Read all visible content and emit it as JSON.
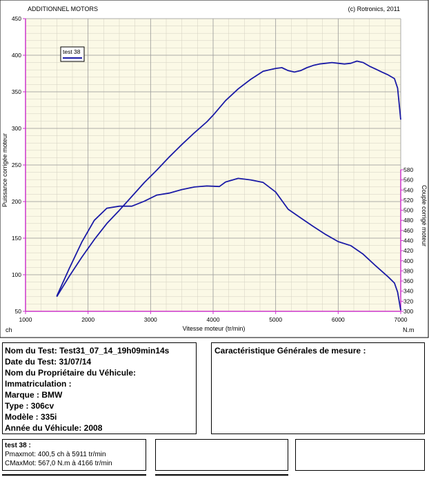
{
  "header": {
    "left_title": "ADDITIONNEL MOTORS",
    "right_title": "(c) Rotronics, 2011"
  },
  "chart_data": {
    "type": "line",
    "xlabel": "Vitesse moteur (tr/min)",
    "ylabel_left": "Puissance corrigée moteur",
    "ylabel_right": "Couple corrigé moteur",
    "unit_left": "ch",
    "unit_right": "N.m",
    "xlim": [
      1000,
      7000
    ],
    "ylim_left": [
      50,
      450
    ],
    "ylim_right": [
      300,
      580
    ],
    "x_ticks": [
      1000,
      2000,
      3000,
      4000,
      5000,
      6000,
      7000
    ],
    "y_ticks_left": [
      50,
      100,
      150,
      200,
      250,
      300,
      350,
      400,
      450
    ],
    "y_ticks_right": [
      300,
      320,
      340,
      360,
      380,
      400,
      420,
      440,
      460,
      480,
      500,
      520,
      540,
      560,
      580
    ],
    "grid": true,
    "legend": "top-left",
    "colors": {
      "curve": "#1a1aa6",
      "axis": "#cc33cc",
      "background": "#fbf9e6",
      "grid": "#a9a9a9"
    },
    "series": [
      {
        "name": "test 38",
        "kind": "power",
        "axis": "left",
        "x": [
          1500,
          1700,
          1900,
          2100,
          2300,
          2500,
          2700,
          2900,
          3100,
          3300,
          3500,
          3700,
          3900,
          4000,
          4200,
          4400,
          4600,
          4800,
          5000,
          5100,
          5200,
          5300,
          5400,
          5500,
          5600,
          5700,
          5800,
          5900,
          6000,
          6100,
          6200,
          6300,
          6400,
          6500,
          6600,
          6700,
          6800,
          6900,
          6950,
          7000
        ],
        "y": [
          70,
          98,
          124,
          148,
          170,
          188,
          207,
          226,
          243,
          261,
          278,
          294,
          309,
          318,
          338,
          354,
          367,
          378,
          382,
          383,
          379,
          377,
          379,
          383,
          386,
          388,
          389,
          390,
          389,
          388,
          389,
          392,
          390,
          385,
          381,
          377,
          373,
          368,
          355,
          312
        ]
      },
      {
        "name": "test 38",
        "kind": "torque",
        "axis": "right",
        "x": [
          1500,
          1700,
          1900,
          2100,
          2300,
          2500,
          2700,
          2900,
          3100,
          3300,
          3500,
          3700,
          3900,
          4100,
          4200,
          4400,
          4600,
          4800,
          5000,
          5200,
          5400,
          5600,
          5800,
          6000,
          6200,
          6400,
          6600,
          6800,
          6900,
          6950,
          7000
        ],
        "y": [
          330,
          385,
          437,
          480,
          504,
          508,
          508,
          518,
          530,
          534,
          541,
          546,
          548,
          547,
          556,
          563,
          560,
          555,
          536,
          502,
          485,
          468,
          452,
          438,
          430,
          413,
          390,
          368,
          356,
          338,
          302
        ]
      }
    ]
  },
  "info_box": {
    "nom_du_test": "Nom du Test: Test31_07_14_19h09min14s",
    "date_du_test": "Date du Test: 31/07/14",
    "nom_proprietaire": "Nom du Propriétaire du Véhicule:",
    "immatriculation": "Immatriculation  :",
    "marque": "Marque  : BMW",
    "type": "Type  : 306cv",
    "modele": "Modèle  : 335i",
    "annee": "Année du Véhicule: 2008"
  },
  "characteristics_box": {
    "title": "Caractéristique Générales de mesure :"
  },
  "result_box": {
    "title": "test 38 :",
    "pmax": "Pmaxmot: 400,5 ch à 5911 tr/min",
    "cmax": "CMaxMot: 567,0 N.m à 4166 tr/min"
  }
}
